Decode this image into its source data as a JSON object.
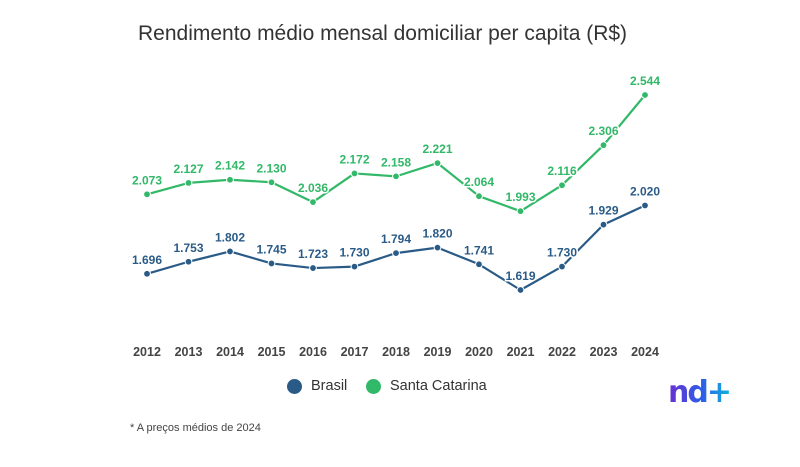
{
  "chart_data": {
    "type": "line",
    "title": "Rendimento médio mensal domiciliar per capita (R$)",
    "xlabel": "",
    "ylabel": "",
    "grid": false,
    "legend_position": "bottom",
    "categories": [
      "2012",
      "2013",
      "2014",
      "2015",
      "2016",
      "2017",
      "2018",
      "2019",
      "2020",
      "2021",
      "2022",
      "2023",
      "2024"
    ],
    "series": [
      {
        "name": "Brasil",
        "color": "#2a5b87",
        "values": [
          1696,
          1753,
          1802,
          1745,
          1723,
          1730,
          1794,
          1820,
          1741,
          1619,
          1730,
          1929,
          2020
        ],
        "labels": [
          "1.696",
          "1.753",
          "1.802",
          "1.745",
          "1.723",
          "1.730",
          "1.794",
          "1.820",
          "1.741",
          "1.619",
          "1.730",
          "1.929",
          "2.020"
        ]
      },
      {
        "name": "Santa Catarina",
        "color": "#31b868",
        "values": [
          2073,
          2127,
          2142,
          2130,
          2036,
          2172,
          2158,
          2221,
          2064,
          1993,
          2116,
          2306,
          2544
        ],
        "labels": [
          "2.073",
          "2.127",
          "2.142",
          "2.130",
          "2.036",
          "2.172",
          "2.158",
          "2.221",
          "2.064",
          "1.993",
          "2.116",
          "2.306",
          "2.544"
        ]
      }
    ]
  },
  "legend": {
    "brasil": "Brasil",
    "santa_catarina": "Santa Catarina"
  },
  "footnote": "* A preços médios de 2024",
  "logo": {
    "text": "nd+"
  }
}
